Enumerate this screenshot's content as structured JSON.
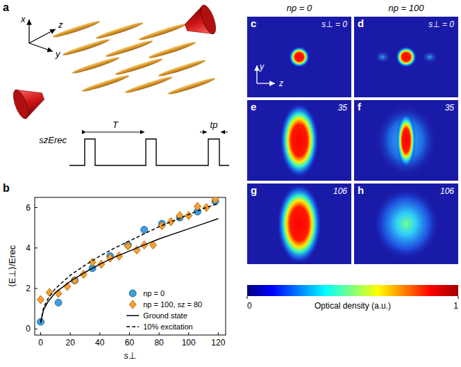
{
  "figure": {
    "panel_a": {
      "letter": "a",
      "axes": [
        "x",
        "y",
        "z"
      ],
      "period_label": "T",
      "pulse_label": "tp",
      "depth_label": "szErec"
    },
    "panel_b": {
      "letter": "b"
    },
    "images": {
      "columns": [
        "np = 0",
        "np = 100"
      ],
      "panels": [
        {
          "letter": "c",
          "label": "s⊥ = 0"
        },
        {
          "letter": "d",
          "label": "s⊥ = 0"
        },
        {
          "letter": "e",
          "label": "35"
        },
        {
          "letter": "f",
          "label": "35"
        },
        {
          "letter": "g",
          "label": "106"
        },
        {
          "letter": "h",
          "label": "106"
        }
      ],
      "axis_labels": [
        "y",
        "z"
      ],
      "colorbar": {
        "range": [
          0,
          1
        ],
        "ticks": [
          0,
          1
        ],
        "label": "Optical density (a.u.)"
      }
    }
  },
  "chart_data": {
    "type": "scatter",
    "xlabel": "s⊥",
    "ylabel": "⟨E⊥⟩/Erec",
    "xlim": [
      -4,
      125
    ],
    "ylim": [
      -0.3,
      6.5
    ],
    "xticks": [
      0,
      20,
      40,
      60,
      80,
      100,
      120
    ],
    "yticks": [
      0,
      2,
      4,
      6
    ],
    "legend": "lower right",
    "series": [
      {
        "name": "np = 0",
        "type": "scatter",
        "marker": "circle",
        "color": "#3b9fe0",
        "x": [
          0,
          12,
          23,
          35,
          47,
          59,
          70,
          82,
          94,
          106,
          118
        ],
        "values": [
          0.35,
          1.3,
          2.4,
          3.0,
          3.6,
          4.15,
          4.9,
          5.2,
          5.5,
          5.8,
          6.3
        ]
      },
      {
        "name": "np = 100, sz = 80",
        "type": "scatter",
        "marker": "diamond",
        "color": "#f5a033",
        "x": [
          0,
          6,
          12,
          18,
          23,
          29,
          35,
          41,
          47,
          53,
          59,
          65,
          70,
          76,
          82,
          88,
          94,
          100,
          106,
          112,
          118
        ],
        "values": [
          1.45,
          1.8,
          1.75,
          2.1,
          2.4,
          2.7,
          3.3,
          3.2,
          3.5,
          3.6,
          4.1,
          3.9,
          4.15,
          4.15,
          5.1,
          5.3,
          5.6,
          5.6,
          6.05,
          6.0,
          6.4
        ]
      },
      {
        "name": "Ground state",
        "type": "line",
        "line_style": "solid",
        "color": "#000000",
        "x": [
          0,
          2,
          5,
          10,
          20,
          30,
          40,
          50,
          60,
          70,
          80,
          90,
          100,
          110,
          120
        ],
        "values": [
          0.3,
          0.95,
          1.35,
          1.8,
          2.35,
          2.8,
          3.2,
          3.55,
          3.85,
          4.15,
          4.45,
          4.7,
          4.95,
          5.2,
          5.45
        ]
      },
      {
        "name": "10% excitation",
        "type": "line",
        "line_style": "dashed",
        "color": "#000000",
        "x": [
          0,
          2,
          5,
          10,
          20,
          30,
          40,
          50,
          60,
          70,
          80,
          90,
          100,
          110,
          120
        ],
        "values": [
          0.35,
          1.05,
          1.5,
          2.0,
          2.65,
          3.15,
          3.6,
          4.0,
          4.35,
          4.7,
          5.05,
          5.35,
          5.65,
          5.95,
          6.2
        ]
      }
    ]
  }
}
